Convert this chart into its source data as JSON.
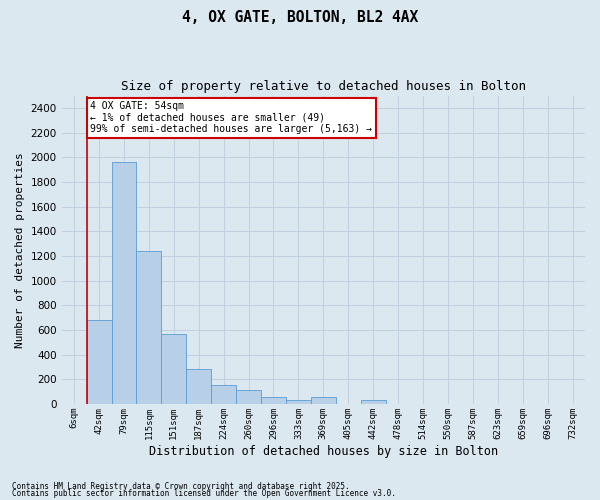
{
  "title1": "4, OX GATE, BOLTON, BL2 4AX",
  "title2": "Size of property relative to detached houses in Bolton",
  "xlabel": "Distribution of detached houses by size in Bolton",
  "ylabel": "Number of detached properties",
  "categories": [
    "6sqm",
    "42sqm",
    "79sqm",
    "115sqm",
    "151sqm",
    "187sqm",
    "224sqm",
    "260sqm",
    "296sqm",
    "333sqm",
    "369sqm",
    "405sqm",
    "442sqm",
    "478sqm",
    "514sqm",
    "550sqm",
    "587sqm",
    "623sqm",
    "659sqm",
    "696sqm",
    "732sqm"
  ],
  "values": [
    0,
    680,
    1960,
    1240,
    570,
    280,
    155,
    110,
    55,
    35,
    55,
    0,
    35,
    0,
    0,
    0,
    0,
    0,
    0,
    0,
    0
  ],
  "bar_color": "#b8cfe8",
  "bar_edge_color": "#5b9bd5",
  "annotation_text": "4 OX GATE: 54sqm\n← 1% of detached houses are smaller (49)\n99% of semi-detached houses are larger (5,163) →",
  "annotation_box_color": "#ffffff",
  "annotation_box_edge": "#cc0000",
  "vline_color": "#cc0000",
  "vline_x_idx": 1,
  "ylim": [
    0,
    2500
  ],
  "yticks": [
    0,
    200,
    400,
    600,
    800,
    1000,
    1200,
    1400,
    1600,
    1800,
    2000,
    2200,
    2400
  ],
  "grid_color": "#c0d0e0",
  "bg_color": "#dce8f0",
  "footer1": "Contains HM Land Registry data © Crown copyright and database right 2025.",
  "footer2": "Contains public sector information licensed under the Open Government Licence v3.0."
}
